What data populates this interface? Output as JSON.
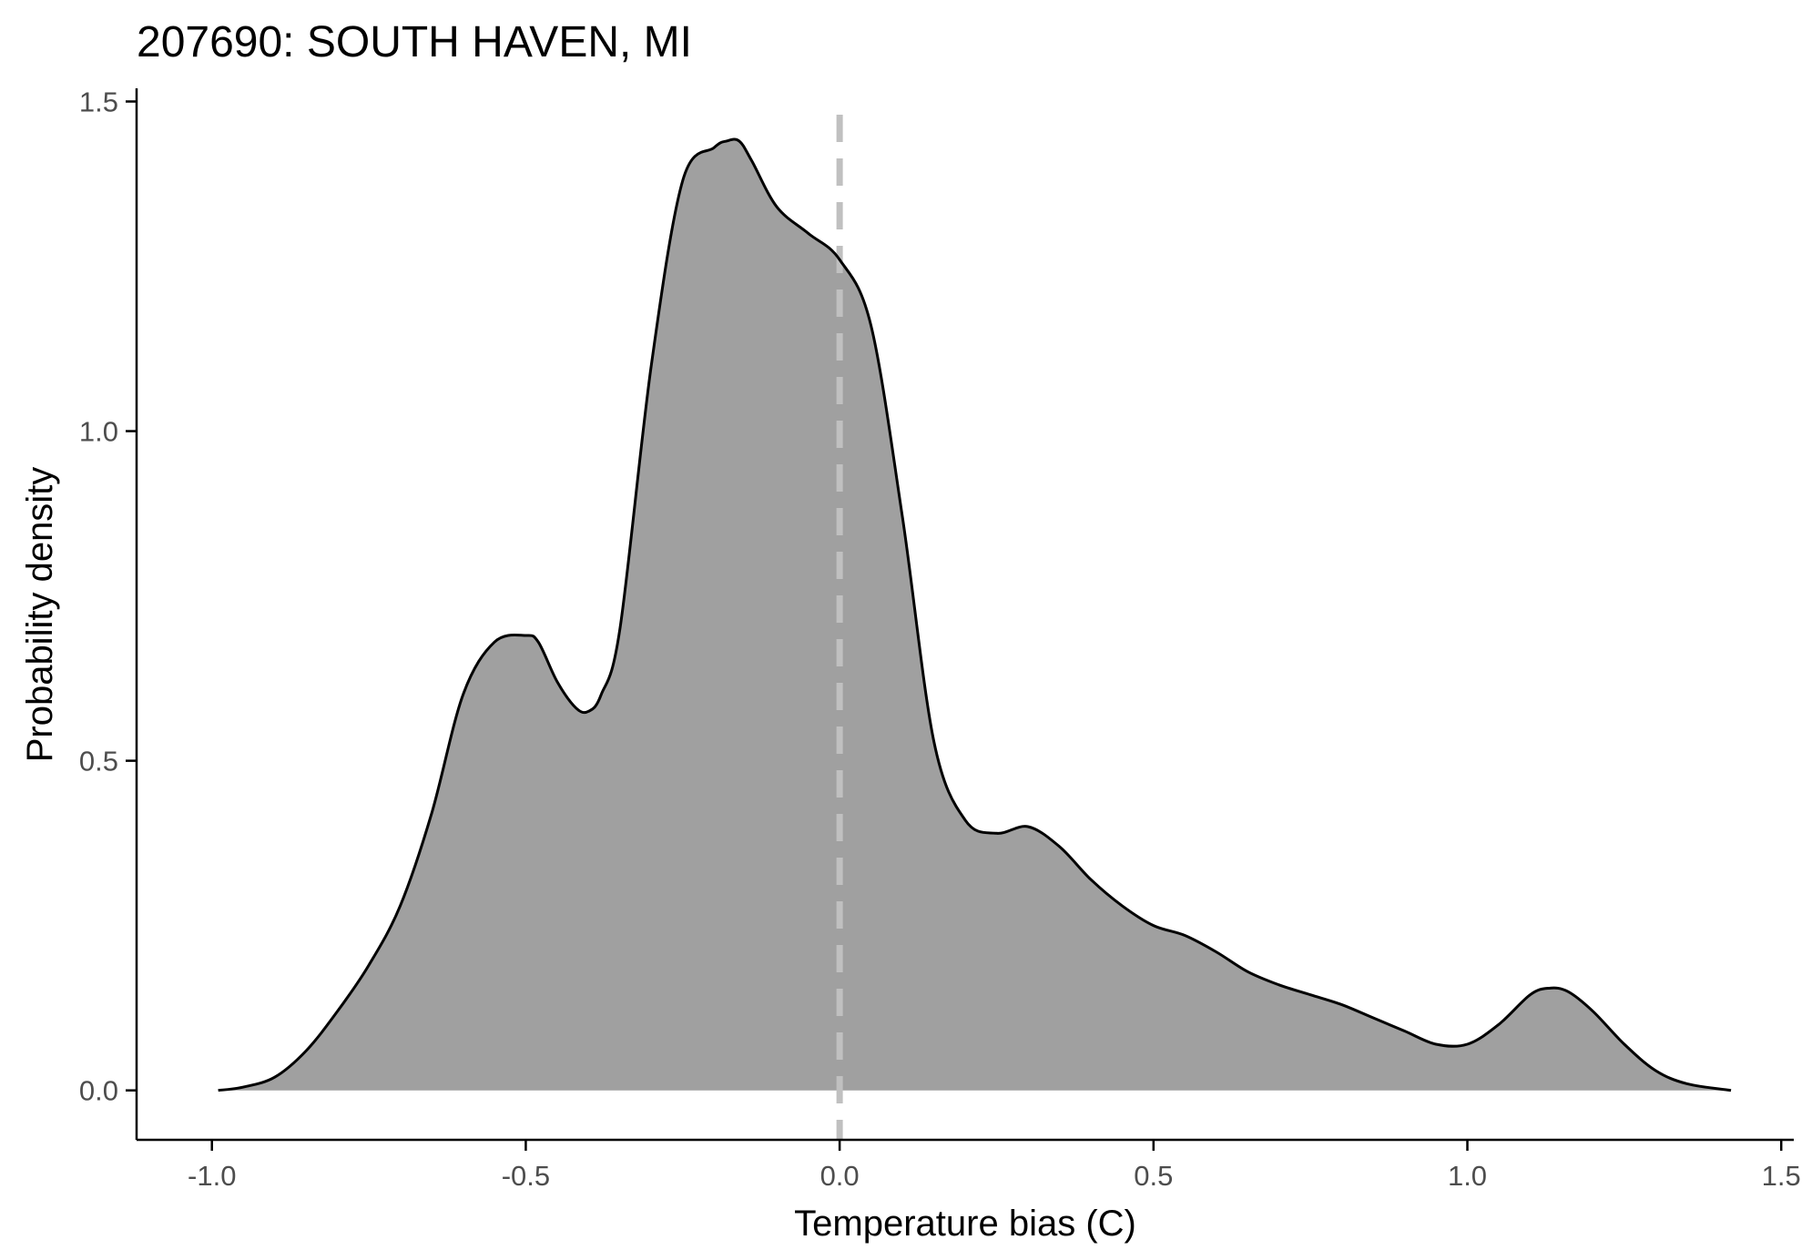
{
  "chart_data": {
    "type": "area",
    "title": "207690: SOUTH HAVEN, MI",
    "xlabel": "Temperature bias (C)",
    "ylabel": "Probability density",
    "xlim": [
      -1.12,
      1.52
    ],
    "ylim": [
      -0.075,
      1.52
    ],
    "x_ticks": [
      -1.0,
      -0.5,
      0.0,
      0.5,
      1.0,
      1.5
    ],
    "x_tick_labels": [
      "-1.0",
      "-0.5",
      "0.0",
      "0.5",
      "1.0",
      "1.5"
    ],
    "y_ticks": [
      0.0,
      0.5,
      1.0,
      1.5
    ],
    "y_tick_labels": [
      "0.0",
      "0.5",
      "1.0",
      "1.5"
    ],
    "grid": false,
    "fill_color": "#a0a0a0",
    "line_color": "#000000",
    "reference_line": {
      "x": 0.0,
      "style": "dashed",
      "color": "#c0c0c0"
    },
    "series": [
      {
        "x": [
          -0.99,
          -0.95,
          -0.9,
          -0.85,
          -0.8,
          -0.75,
          -0.7,
          -0.65,
          -0.6,
          -0.55,
          -0.5,
          -0.48,
          -0.45,
          -0.42,
          -0.4,
          -0.38,
          -0.35,
          -0.3,
          -0.25,
          -0.2,
          -0.18,
          -0.16,
          -0.14,
          -0.1,
          -0.05,
          0.0,
          0.05,
          0.1,
          0.15,
          0.2,
          0.25,
          0.3,
          0.35,
          0.4,
          0.45,
          0.5,
          0.55,
          0.6,
          0.65,
          0.7,
          0.75,
          0.8,
          0.85,
          0.9,
          0.95,
          1.0,
          1.05,
          1.1,
          1.13,
          1.16,
          1.2,
          1.25,
          1.3,
          1.35,
          1.42
        ],
        "y": [
          0.0,
          0.005,
          0.02,
          0.06,
          0.12,
          0.19,
          0.28,
          0.42,
          0.6,
          0.68,
          0.69,
          0.68,
          0.62,
          0.58,
          0.575,
          0.6,
          0.7,
          1.1,
          1.38,
          1.43,
          1.44,
          1.44,
          1.41,
          1.34,
          1.3,
          1.26,
          1.16,
          0.87,
          0.53,
          0.41,
          0.39,
          0.4,
          0.37,
          0.32,
          0.28,
          0.25,
          0.235,
          0.21,
          0.18,
          0.16,
          0.145,
          0.13,
          0.11,
          0.09,
          0.07,
          0.07,
          0.1,
          0.145,
          0.155,
          0.15,
          0.12,
          0.07,
          0.03,
          0.01,
          0.0
        ]
      }
    ]
  }
}
